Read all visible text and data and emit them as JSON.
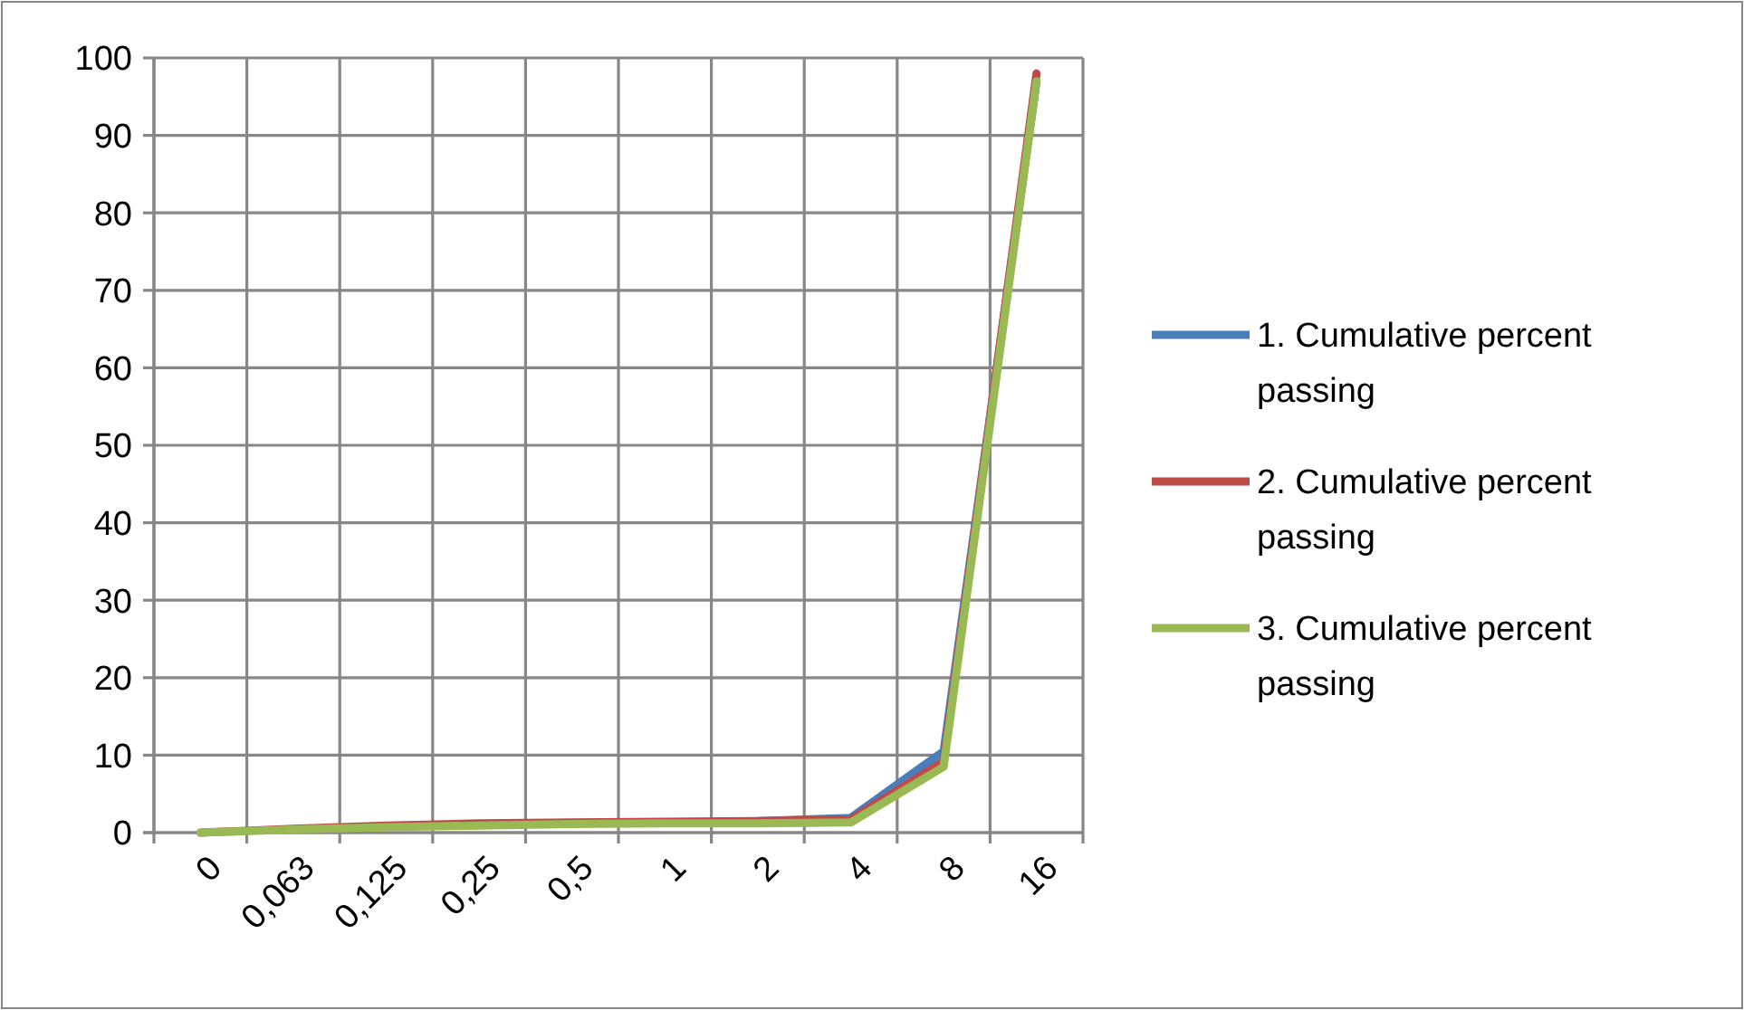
{
  "chart_data": {
    "type": "line",
    "categories": [
      "0",
      "0,063",
      "0,125",
      "0,25",
      "0,5",
      "1",
      "2",
      "4",
      "8",
      "16"
    ],
    "series": [
      {
        "name": "1. Cumulative percent passing",
        "color": "#4a7ebb",
        "values": [
          null,
          null,
          null,
          null,
          null,
          null,
          1.5,
          1.9,
          10.5,
          97
        ]
      },
      {
        "name": "2. Cumulative percent passing",
        "color": "#be4b48",
        "values": [
          0,
          0.5,
          0.9,
          1.2,
          1.3,
          1.4,
          1.5,
          1.7,
          9.2,
          98
        ]
      },
      {
        "name": "3. Cumulative percent passing",
        "color": "#98b954",
        "values": [
          0,
          0.4,
          0.7,
          0.9,
          1.1,
          1.2,
          1.2,
          1.3,
          8.5,
          97
        ]
      }
    ],
    "ylim": [
      0,
      100
    ],
    "yticks": [
      0,
      10,
      20,
      30,
      40,
      50,
      60,
      70,
      80,
      90,
      100
    ],
    "grid": true,
    "legend": "right",
    "marker": "none",
    "line_style": "solid"
  }
}
